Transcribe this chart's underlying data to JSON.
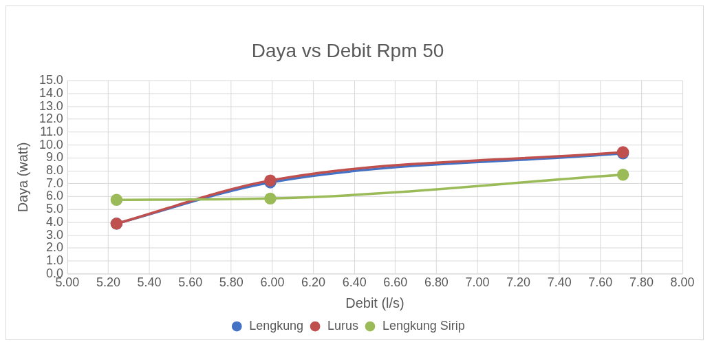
{
  "chart_data": {
    "type": "line",
    "title": "Daya vs Debit Rpm 50",
    "xlabel": "Debit (l/s)",
    "ylabel": "Daya (watt)",
    "x": [
      5.24,
      5.99,
      7.71
    ],
    "series": [
      {
        "name": "Lengkung",
        "color": "#4472c4",
        "values": [
          3.9,
          7.1,
          9.35
        ]
      },
      {
        "name": "Lurus",
        "color": "#c0504d",
        "values": [
          3.9,
          7.25,
          9.45
        ]
      },
      {
        "name": "Lengkung Sirip",
        "color": "#9bbb59",
        "values": [
          5.75,
          5.85,
          7.7
        ]
      }
    ],
    "xlim": [
      5,
      8
    ],
    "xticks": [
      {
        "value": 5,
        "label": "5.00"
      },
      {
        "value": 5.2,
        "label": "5.20"
      },
      {
        "value": 5.4,
        "label": "5.40"
      },
      {
        "value": 5.6,
        "label": "5.60"
      },
      {
        "value": 5.8,
        "label": "5.80"
      },
      {
        "value": 6,
        "label": "6.00"
      },
      {
        "value": 6.2,
        "label": "6.20"
      },
      {
        "value": 6.4,
        "label": "6.40"
      },
      {
        "value": 6.6,
        "label": "6.60"
      },
      {
        "value": 6.8,
        "label": "6.80"
      },
      {
        "value": 7,
        "label": "7.00"
      },
      {
        "value": 7.2,
        "label": "7.20"
      },
      {
        "value": 7.4,
        "label": "7.40"
      },
      {
        "value": 7.6,
        "label": "7.60"
      },
      {
        "value": 7.8,
        "label": "7.80"
      },
      {
        "value": 8,
        "label": "8.00"
      }
    ],
    "ylim": [
      0,
      15
    ],
    "yticks": [
      {
        "value": 0,
        "label": "0.0"
      },
      {
        "value": 1,
        "label": "1.0"
      },
      {
        "value": 2,
        "label": "2.0"
      },
      {
        "value": 3,
        "label": "3.0"
      },
      {
        "value": 4,
        "label": "4.0"
      },
      {
        "value": 5,
        "label": "5.0"
      },
      {
        "value": 6,
        "label": "6.0"
      },
      {
        "value": 7,
        "label": "7.0"
      },
      {
        "value": 8,
        "label": "8.0"
      },
      {
        "value": 9,
        "label": "9.0"
      },
      {
        "value": 10,
        "label": "10.0"
      },
      {
        "value": 11,
        "label": "11.0"
      },
      {
        "value": 12,
        "label": "12.0"
      },
      {
        "value": 13,
        "label": "13.0"
      },
      {
        "value": 14,
        "label": "14.0"
      },
      {
        "value": 15,
        "label": "15.0"
      }
    ],
    "grid": true,
    "legend": "bottom",
    "marker": "circle",
    "line_style": "solid"
  }
}
